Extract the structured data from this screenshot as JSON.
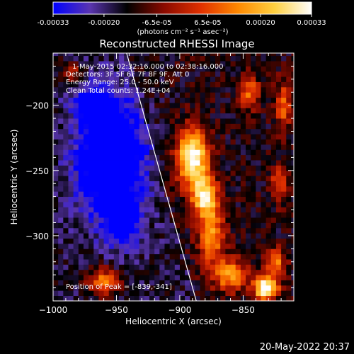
{
  "colorbar": {
    "ticks": [
      "-0.00033",
      "-0.00020",
      "-6.5e-05",
      "6.5e-05",
      "0.00020",
      "0.00033"
    ],
    "tick_values": [
      -0.00033,
      -0.0002,
      -6.5e-05,
      6.5e-05,
      0.0002,
      0.00033
    ],
    "range": [
      -0.00033,
      0.00033
    ],
    "unit_label": "(photons cm⁻² s⁻¹ asec⁻²)",
    "stops": [
      "#0000ff",
      "#5a35b0",
      "#000000",
      "#8a0a00",
      "#e03000",
      "#ff8800",
      "#ffd040",
      "#ffffff"
    ]
  },
  "chart_data": {
    "type": "heatmap",
    "title": "Reconstructed RHESSI Image",
    "xlabel": "Heliocentric X (arcsec)",
    "ylabel": "Heliocentric Y (arcsec)",
    "xlim": [
      -1000,
      -810
    ],
    "ylim": [
      -350,
      -160
    ],
    "x_ticks": [
      -1000,
      -950,
      -900,
      -850
    ],
    "y_ticks": [
      -200,
      -250,
      -300
    ],
    "x_tick_labels": [
      "−1000",
      "−950",
      "−900",
      "−850"
    ],
    "y_tick_labels": [
      "−200",
      "−250",
      "−300"
    ],
    "limb_line": [
      [
        -942,
        -160
      ],
      [
        -887,
        -350
      ]
    ],
    "peak": [
      -839,
      -341
    ],
    "annotations": {
      "time": "1-May-2015 02:32:16.000 to 02:38:16.000",
      "detectors": "Detectors: 3F 5F 6F 7F 8F 9F, Att 0",
      "energy": "Energy Range: 25.0 - 50.0 keV",
      "clean": "Clean    Total counts: 1.24E+04",
      "peak_label": "Position of Peak = [-839,-341]"
    }
  },
  "footer": {
    "timestamp": "20-May-2022 20:37"
  }
}
